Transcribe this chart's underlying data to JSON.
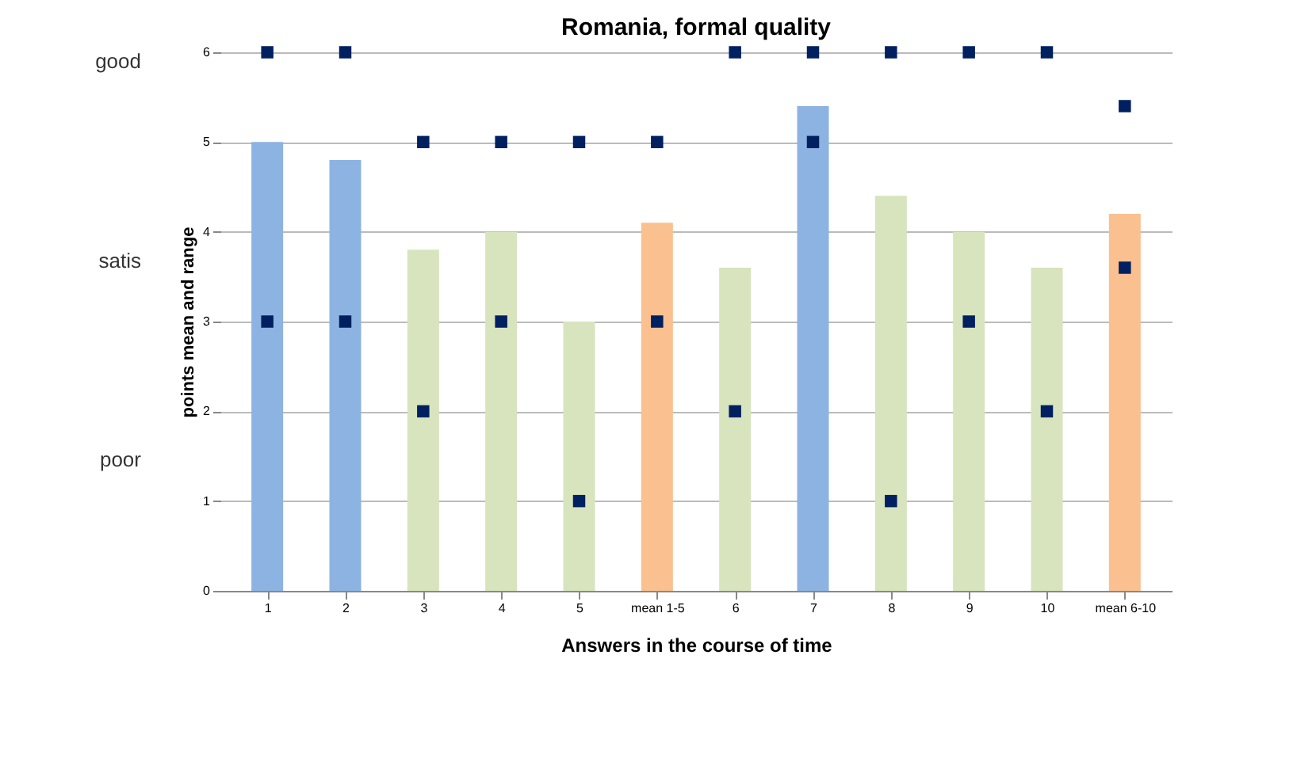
{
  "chart_data": {
    "type": "bar",
    "title": "Romania, formal quality",
    "xlabel": "Answers in the course of time",
    "ylabel": "points mean and range",
    "categories": [
      "1",
      "2",
      "3",
      "4",
      "5",
      "mean 1-5",
      "6",
      "7",
      "8",
      "9",
      "10",
      "mean 6-10"
    ],
    "series": [
      {
        "type": "bar",
        "values": [
          5,
          4.8,
          3.8,
          4,
          3,
          4.1,
          3.6,
          5.4,
          4.4,
          4,
          3.6,
          4.2
        ],
        "colors": [
          "#8db3e2",
          "#8db3e2",
          "#d7e4bd",
          "#d7e4bd",
          "#d7e4bd",
          "#fac090",
          "#d7e4bd",
          "#8db3e2",
          "#d7e4bd",
          "#d7e4bd",
          "#d7e4bd",
          "#fac090"
        ]
      },
      {
        "type": "scatter",
        "color": "#002060",
        "values": [
          6,
          6,
          5,
          5,
          5,
          5,
          6,
          6,
          6,
          6,
          6,
          5.4
        ]
      },
      {
        "type": "scatter",
        "color": "#002060",
        "values": [
          3,
          3,
          2,
          3,
          1,
          3,
          2,
          5,
          1,
          3,
          2,
          3.6
        ]
      }
    ],
    "ylim": [
      0,
      6
    ],
    "yticks": [
      0,
      1,
      2,
      3,
      4,
      5,
      6
    ],
    "grid": "y",
    "marker": "square",
    "legend": false,
    "annotations": [
      "good",
      "satis",
      "poor"
    ]
  }
}
